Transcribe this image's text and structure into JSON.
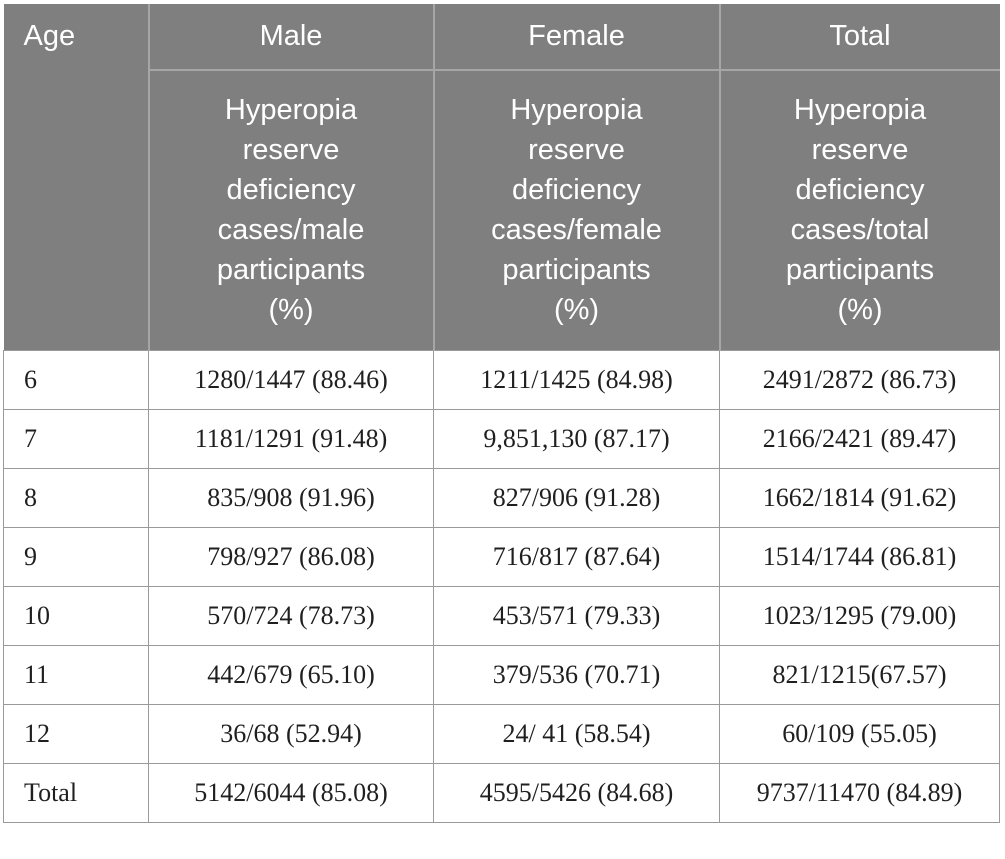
{
  "chart_data": {
    "type": "table",
    "columns": [
      "Age",
      "Male - Hyperopia reserve deficiency cases/male participants (%)",
      "Female - Hyperopia reserve deficiency cases/female participants (%)",
      "Total - Hyperopia reserve deficiency cases/total participants (%)"
    ],
    "rows": [
      [
        "6",
        "1280/1447 (88.46)",
        "1211/1425 (84.98)",
        "2491/2872 (86.73)"
      ],
      [
        "7",
        "1181/1291 (91.48)",
        "9,851,130 (87.17)",
        "2166/2421 (89.47)"
      ],
      [
        "8",
        "835/908 (91.96)",
        "827/906 (91.28)",
        "1662/1814 (91.62)"
      ],
      [
        "9",
        "798/927 (86.08)",
        "716/817 (87.64)",
        "1514/1744 (86.81)"
      ],
      [
        "10",
        "570/724 (78.73)",
        "453/571 (79.33)",
        "1023/1295 (79.00)"
      ],
      [
        "11",
        "442/679 (65.10)",
        "379/536 (70.71)",
        "821/1215(67.57)"
      ],
      [
        "12",
        "36/68 (52.94)",
        "24/ 41 (58.54)",
        "60/109 (55.05)"
      ],
      [
        "Total",
        "5142/6044 (85.08)",
        "4595/5426 (84.68)",
        "9737/11470 (84.89)"
      ]
    ]
  },
  "table": {
    "columns": {
      "age_label": "Age",
      "groups": [
        {
          "label": "Male",
          "subheader": "Hyperopia\nreserve\ndeficiency\ncases/male\nparticipants\n(%)"
        },
        {
          "label": "Female",
          "subheader": "Hyperopia\nreserve\ndeficiency\ncases/female\nparticipants\n(%)"
        },
        {
          "label": "Total",
          "subheader": "Hyperopia\nreserve\ndeficiency\ncases/total\nparticipants\n(%)"
        }
      ]
    },
    "rows": [
      {
        "age": "6",
        "male": "1280/1447 (88.46)",
        "female": "1211/1425 (84.98)",
        "total": "2491/2872 (86.73)"
      },
      {
        "age": "7",
        "male": "1181/1291 (91.48)",
        "female": "9,851,130 (87.17)",
        "total": "2166/2421 (89.47)"
      },
      {
        "age": "8",
        "male": "835/908 (91.96)",
        "female": "827/906 (91.28)",
        "total": "1662/1814 (91.62)"
      },
      {
        "age": "9",
        "male": "798/927 (86.08)",
        "female": "716/817 (87.64)",
        "total": "1514/1744 (86.81)"
      },
      {
        "age": "10",
        "male": "570/724 (78.73)",
        "female": "453/571 (79.33)",
        "total": "1023/1295 (79.00)"
      },
      {
        "age": "11",
        "male": "442/679 (65.10)",
        "female": "379/536 (70.71)",
        "total": "821/1215(67.57)"
      },
      {
        "age": "12",
        "male": "36/68 (52.94)",
        "female": "24/ 41 (58.54)",
        "total": "60/109 (55.05)"
      },
      {
        "age": "Total",
        "male": "5142/6044 (85.08)",
        "female": "4595/5426 (84.68)",
        "total": "9737/11470 (84.89)"
      }
    ],
    "colors": {
      "header_bg": "#7f7f7f",
      "header_divider": "#a6a6a6",
      "header_text": "#ffffff",
      "body_text": "#1f1f1f",
      "border": "#9a9a9a",
      "background": "#ffffff"
    }
  }
}
